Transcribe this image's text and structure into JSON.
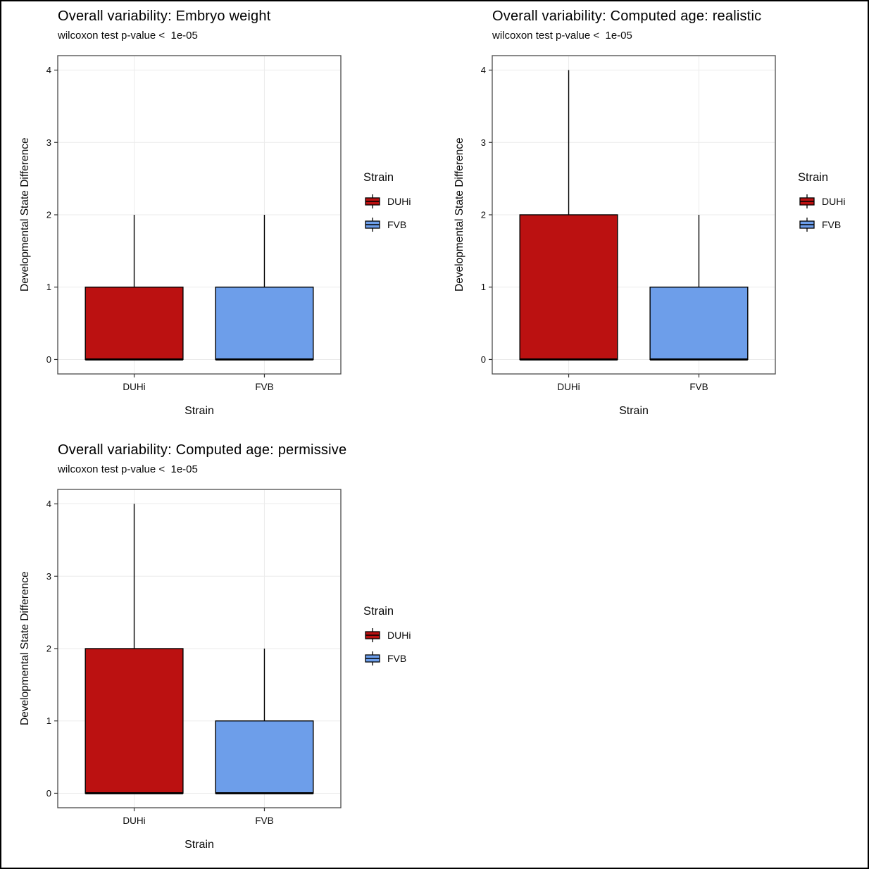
{
  "figure": {
    "background": "#ffffff",
    "frame_color": "#000000"
  },
  "colors": {
    "duhi": "#bb1111",
    "fvb": "#6d9eea",
    "box_border": "#000000",
    "grid": "#ebebeb",
    "panel_border": "#4a4a4a",
    "tick": "#333333",
    "text": "#0a0a0a"
  },
  "chart_data": [
    {
      "type": "boxplot",
      "title": "Overall variability: Embryo weight",
      "subtitle": "wilcoxon test p-value <  1e-05",
      "xlabel": "Strain",
      "ylabel": "Developmental State Difference",
      "ylim": [
        0,
        4
      ],
      "yticks": [
        0,
        1,
        2,
        3,
        4
      ],
      "categories": [
        "DUHi",
        "FVB"
      ],
      "series": [
        {
          "name": "DUHi",
          "color": "#bb1111",
          "whisker_low": 0,
          "q1": 0,
          "median": 0,
          "q3": 1,
          "whisker_high": 2
        },
        {
          "name": "FVB",
          "color": "#6d9eea",
          "whisker_low": 0,
          "q1": 0,
          "median": 0,
          "q3": 1,
          "whisker_high": 2
        }
      ],
      "legend": {
        "title": "Strain",
        "position": "right",
        "items": [
          {
            "label": "DUHi",
            "color": "#bb1111"
          },
          {
            "label": "FVB",
            "color": "#6d9eea"
          }
        ]
      },
      "grid": "on"
    },
    {
      "type": "boxplot",
      "title": "Overall variability: Computed age: realistic",
      "subtitle": "wilcoxon test p-value <  1e-05",
      "xlabel": "Strain",
      "ylabel": "Developmental State Difference",
      "ylim": [
        0,
        4
      ],
      "yticks": [
        0,
        1,
        2,
        3,
        4
      ],
      "categories": [
        "DUHi",
        "FVB"
      ],
      "series": [
        {
          "name": "DUHi",
          "color": "#bb1111",
          "whisker_low": 0,
          "q1": 0,
          "median": 0,
          "q3": 2,
          "whisker_high": 4
        },
        {
          "name": "FVB",
          "color": "#6d9eea",
          "whisker_low": 0,
          "q1": 0,
          "median": 0,
          "q3": 1,
          "whisker_high": 2
        }
      ],
      "legend": {
        "title": "Strain",
        "position": "right",
        "items": [
          {
            "label": "DUHi",
            "color": "#bb1111"
          },
          {
            "label": "FVB",
            "color": "#6d9eea"
          }
        ]
      },
      "grid": "on"
    },
    {
      "type": "boxplot",
      "title": "Overall variability: Computed age: permissive",
      "subtitle": "wilcoxon test p-value <  1e-05",
      "xlabel": "Strain",
      "ylabel": "Developmental State Difference",
      "ylim": [
        0,
        4
      ],
      "yticks": [
        0,
        1,
        2,
        3,
        4
      ],
      "categories": [
        "DUHi",
        "FVB"
      ],
      "series": [
        {
          "name": "DUHi",
          "color": "#bb1111",
          "whisker_low": 0,
          "q1": 0,
          "median": 0,
          "q3": 2,
          "whisker_high": 4
        },
        {
          "name": "FVB",
          "color": "#6d9eea",
          "whisker_low": 0,
          "q1": 0,
          "median": 0,
          "q3": 1,
          "whisker_high": 2
        }
      ],
      "legend": {
        "title": "Strain",
        "position": "right",
        "items": [
          {
            "label": "DUHi",
            "color": "#bb1111"
          },
          {
            "label": "FVB",
            "color": "#6d9eea"
          }
        ]
      },
      "grid": "on"
    }
  ]
}
